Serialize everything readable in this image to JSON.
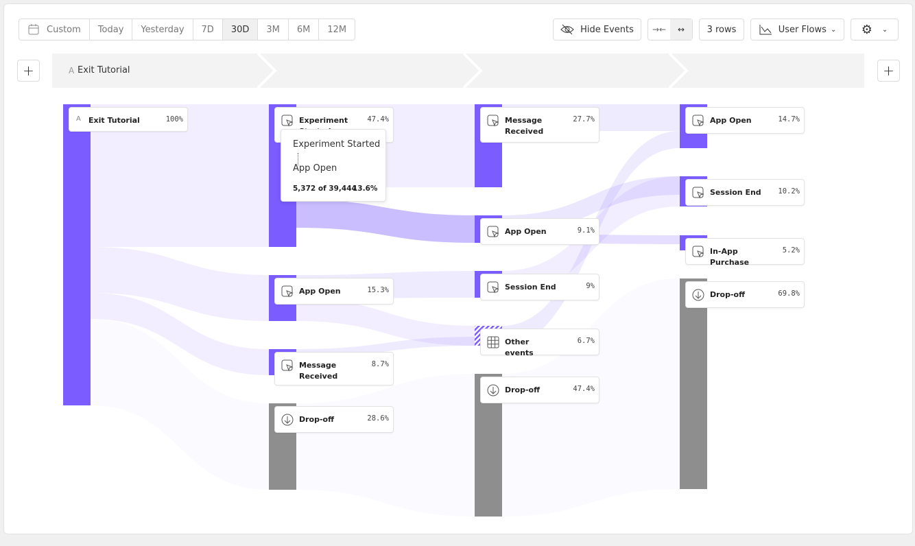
{
  "toolbar": {
    "date_ranges": [
      "Custom",
      "Today",
      "Yesterday",
      "7D",
      "30D",
      "3M",
      "6M",
      "12M"
    ],
    "hide_events": "Hide Events",
    "rows": "3 rows",
    "view": "User Flows"
  },
  "steps": [
    {
      "letter": "A",
      "label": "Exit Tutorial"
    }
  ],
  "columns": [
    {
      "nodes": [
        {
          "badge": "A",
          "label": "Exit Tutorial",
          "percent": "100%"
        }
      ]
    },
    {
      "nodes": [
        {
          "label": "Experiment Started",
          "percent": "47.4%"
        },
        {
          "label": "App Open",
          "percent": "15.3%"
        },
        {
          "label": "Message Received",
          "percent": "8.7%"
        },
        {
          "label": "Drop-off",
          "percent": "28.6%"
        }
      ]
    },
    {
      "nodes": [
        {
          "label": "Message Received",
          "percent": "27.7%"
        },
        {
          "label": "App Open",
          "percent": "9.1%"
        },
        {
          "label": "Session End",
          "percent": "9%"
        },
        {
          "label": "Other events",
          "percent": "6.7%"
        },
        {
          "label": "Drop-off",
          "percent": "47.4%"
        }
      ]
    },
    {
      "nodes": [
        {
          "label": "App Open",
          "percent": "14.7%"
        },
        {
          "label": "Session End",
          "percent": "10.2%"
        },
        {
          "label": "In-App Purchase",
          "percent": "5.2%"
        },
        {
          "label": "Drop-off",
          "percent": "69.8%"
        }
      ]
    }
  ],
  "tooltip": {
    "from": "Experiment Started",
    "to": "App Open",
    "count": "5,372 of 39,444",
    "percent": "13.6%"
  }
}
